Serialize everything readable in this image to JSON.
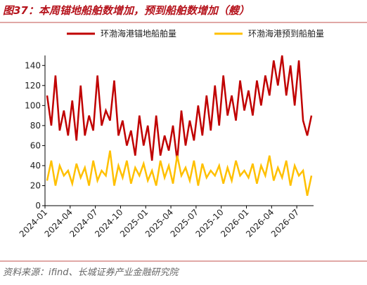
{
  "chart_data": {
    "type": "line",
    "title": "图37：本周锚地船舶数增加，预到船舶数增加（艘）",
    "source": "资料来源：ifind、长城证券产业金融研究院",
    "categories": [
      "2024-01",
      null,
      null,
      null,
      null,
      null,
      "2024-04",
      null,
      null,
      null,
      null,
      null,
      "2024-07",
      null,
      null,
      null,
      null,
      null,
      "2024-10",
      null,
      null,
      null,
      null,
      null,
      "2025-01",
      null,
      null,
      null,
      null,
      null,
      "2025-04",
      null,
      null,
      null,
      null,
      null,
      "2025-07",
      null,
      null,
      null,
      null,
      null,
      "2025-10",
      null,
      null,
      null,
      null,
      null,
      "2026-01",
      null,
      null,
      null,
      null,
      null,
      "2026-04",
      null,
      null,
      null,
      null,
      null,
      "2026-07",
      null,
      null,
      null
    ],
    "series": [
      {
        "name": "环渤海港锚地船舶量",
        "color": "#c00000",
        "values": [
          110,
          80,
          130,
          75,
          95,
          70,
          105,
          65,
          120,
          70,
          90,
          75,
          130,
          80,
          95,
          85,
          125,
          70,
          85,
          60,
          75,
          50,
          90,
          60,
          80,
          45,
          90,
          50,
          70,
          55,
          80,
          45,
          95,
          60,
          85,
          65,
          100,
          70,
          110,
          75,
          120,
          80,
          130,
          90,
          110,
          85,
          125,
          95,
          115,
          90,
          125,
          100,
          130,
          110,
          145,
          120,
          150,
          110,
          140,
          100,
          145,
          85,
          70,
          90
        ]
      },
      {
        "name": "环渤海港预到船舶量",
        "color": "#ffc000",
        "values": [
          25,
          45,
          20,
          40,
          30,
          35,
          22,
          42,
          28,
          38,
          20,
          45,
          25,
          35,
          30,
          55,
          20,
          40,
          28,
          45,
          22,
          38,
          30,
          42,
          25,
          35,
          20,
          45,
          28,
          40,
          22,
          50,
          30,
          38,
          25,
          45,
          20,
          42,
          28,
          35,
          30,
          40,
          22,
          38,
          25,
          45,
          30,
          35,
          28,
          42,
          22,
          40,
          30,
          50,
          25,
          38,
          28,
          45,
          20,
          40,
          30,
          35,
          10,
          30
        ]
      }
    ],
    "ylim": [
      0,
      150
    ],
    "yticks": [
      0,
      20,
      40,
      60,
      80,
      100,
      120,
      140
    ]
  }
}
